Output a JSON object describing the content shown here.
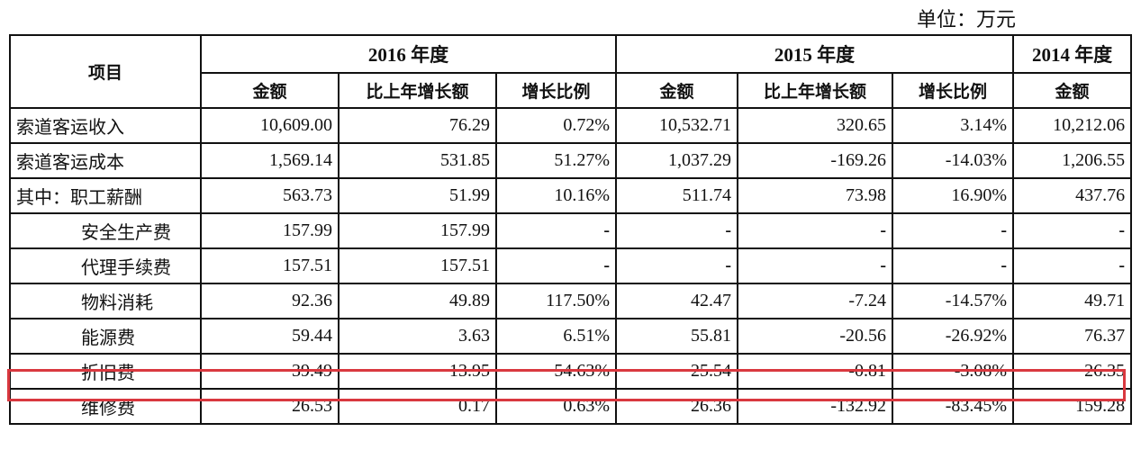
{
  "unit": "单位：万元",
  "headers": {
    "item": "项目",
    "years": [
      "2016 年度",
      "2015 年度",
      "2014 年度"
    ],
    "cols": [
      "金额",
      "比上年增长额",
      "增长比例",
      "金额",
      "比上年增长额",
      "增长比例",
      "金额"
    ]
  },
  "rows": [
    {
      "label": "索道客运收入",
      "values": [
        "10,609.00",
        "76.29",
        "0.72%",
        "10,532.71",
        "320.65",
        "3.14%",
        "10,212.06"
      ]
    },
    {
      "label": "索道客运成本",
      "values": [
        "1,569.14",
        "531.85",
        "51.27%",
        "1,037.29",
        "-169.26",
        "-14.03%",
        "1,206.55"
      ]
    },
    {
      "label": "其中：职工薪酬",
      "values": [
        "563.73",
        "51.99",
        "10.16%",
        "511.74",
        "73.98",
        "16.90%",
        "437.76"
      ]
    },
    {
      "label": "安全生产费",
      "values": [
        "157.99",
        "157.99",
        "-",
        "-",
        "-",
        "-",
        "-"
      ]
    },
    {
      "label": "代理手续费",
      "values": [
        "157.51",
        "157.51",
        "-",
        "-",
        "-",
        "-",
        "-"
      ]
    },
    {
      "label": "物料消耗",
      "values": [
        "92.36",
        "49.89",
        "117.50%",
        "42.47",
        "-7.24",
        "-14.57%",
        "49.71"
      ]
    },
    {
      "label": "能源费",
      "values": [
        "59.44",
        "3.63",
        "6.51%",
        "55.81",
        "-20.56",
        "-26.92%",
        "76.37"
      ]
    },
    {
      "label": "折旧费",
      "values": [
        "39.49",
        "13.95",
        "54.63%",
        "25.54",
        "-0.81",
        "-3.08%",
        "26.35"
      ]
    },
    {
      "label": "维修费",
      "values": [
        "26.53",
        "0.17",
        "0.63%",
        "26.36",
        "-132.92",
        "-83.45%",
        "159.28"
      ]
    }
  ],
  "highlight_row_label": "折旧费",
  "colors": {
    "highlight_border": "#d9383f",
    "grid": "#111111"
  }
}
